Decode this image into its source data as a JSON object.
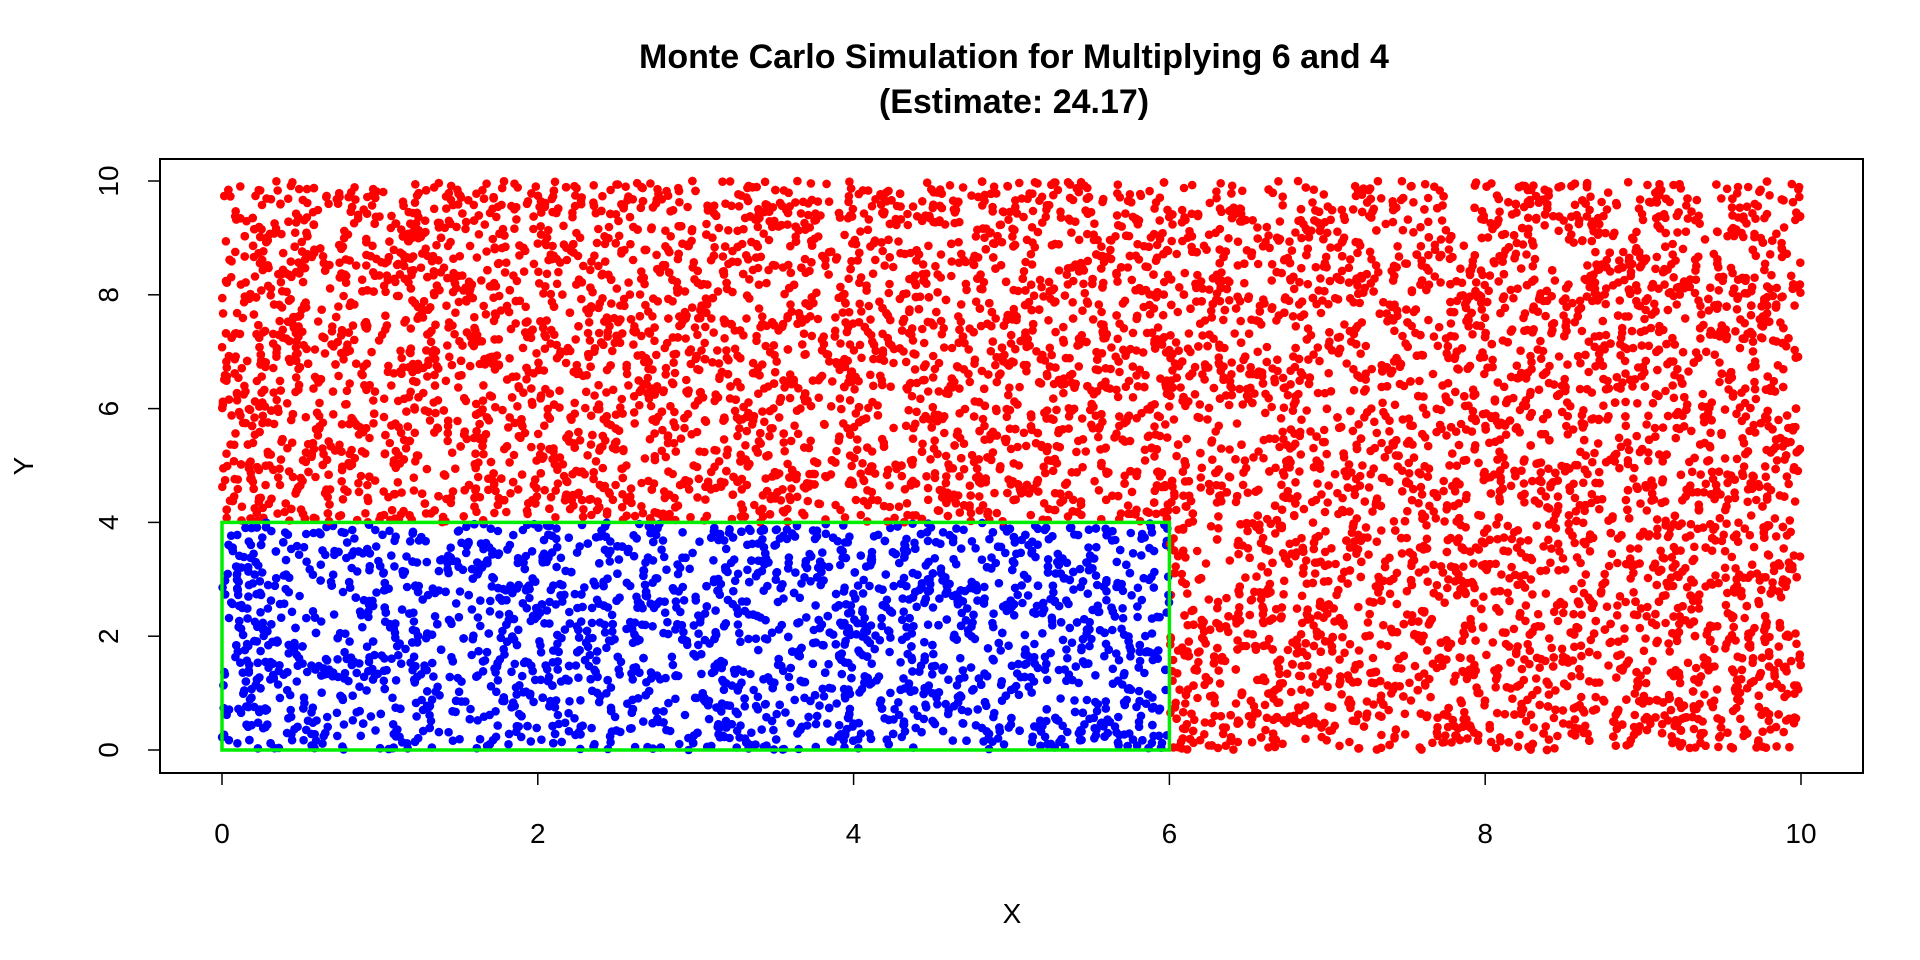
{
  "chart_data": {
    "type": "scatter",
    "title": "Monte Carlo Simulation for Multiplying 6 and 4",
    "subtitle": "(Estimate: 24.17)",
    "xlabel": "X",
    "ylabel": "Y",
    "xlim": [
      0,
      10
    ],
    "ylim": [
      0,
      10
    ],
    "x_ticks": [
      "0",
      "2",
      "4",
      "6",
      "8",
      "10"
    ],
    "y_ticks": [
      "0",
      "2",
      "4",
      "6",
      "8",
      "10"
    ],
    "grid": false,
    "legend": "none",
    "series": [
      {
        "color": "#ff0000",
        "region": "outside rectangle [0,6]x[0,4]",
        "x_range": [
          0,
          10
        ],
        "y_range": [
          0,
          10
        ],
        "approx_points": 7500
      },
      {
        "color": "#0000ff",
        "region": "inside rectangle [0,6]x[0,4]",
        "x_range": [
          0,
          6
        ],
        "y_range": [
          0,
          4
        ],
        "approx_points": 2500
      }
    ],
    "rectangle": {
      "x": [
        0,
        6
      ],
      "y": [
        0,
        4
      ],
      "color": "#00ee00"
    }
  }
}
